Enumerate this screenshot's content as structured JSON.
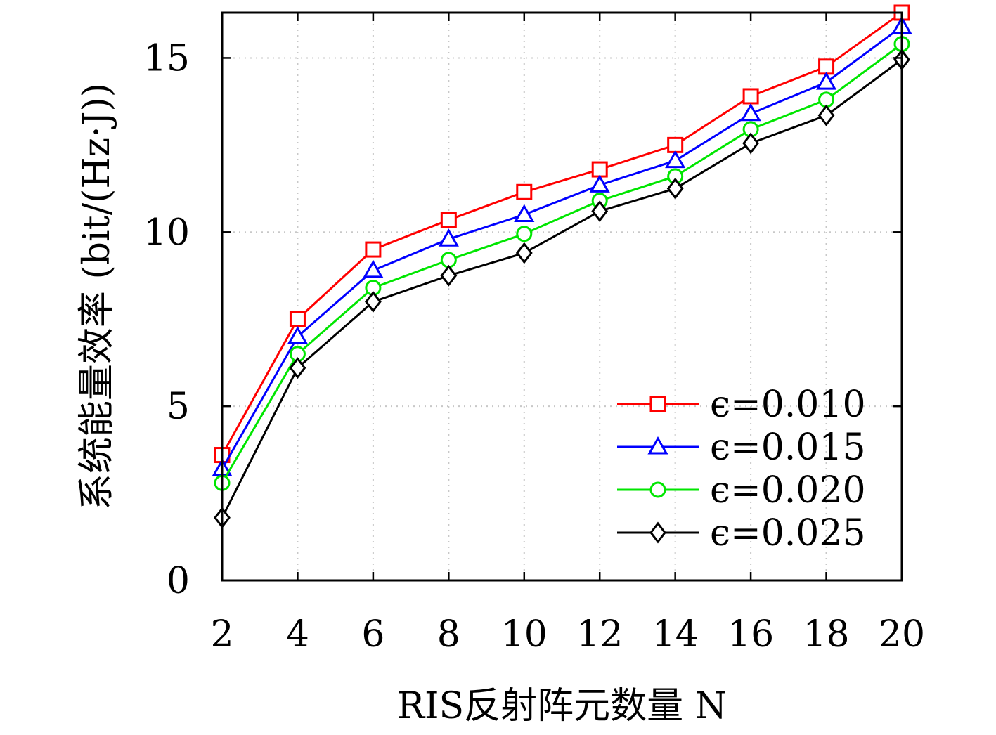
{
  "chart_data": {
    "type": "line",
    "title": "",
    "xlabel": "RIS反射阵元数量 N",
    "ylabel": "系统能量效率 (bit/(Hz·J))",
    "x": [
      2,
      4,
      6,
      8,
      10,
      12,
      14,
      16,
      18,
      20
    ],
    "xlim": [
      2,
      20
    ],
    "ylim": [
      0,
      16.3
    ],
    "xticks": [
      "2",
      "4",
      "6",
      "8",
      "10",
      "12",
      "14",
      "16",
      "18",
      "20"
    ],
    "yticks": [
      "0",
      "5",
      "10",
      "15"
    ],
    "grid": true,
    "legend_position": "bottom-right",
    "series": [
      {
        "name": "ϵ=0.010",
        "color": "#ff0000",
        "marker": "square",
        "values": [
          3.6,
          7.5,
          9.5,
          10.35,
          11.15,
          11.8,
          12.5,
          13.9,
          14.75,
          16.3
        ]
      },
      {
        "name": "ϵ=0.015",
        "color": "#0000ff",
        "marker": "triangle",
        "values": [
          3.2,
          7.0,
          8.9,
          9.8,
          10.5,
          11.35,
          12.05,
          13.4,
          14.3,
          15.9
        ]
      },
      {
        "name": "ϵ=0.020",
        "color": "#00e600",
        "marker": "circle",
        "values": [
          2.8,
          6.5,
          8.4,
          9.2,
          9.95,
          10.9,
          11.6,
          12.95,
          13.8,
          15.4
        ]
      },
      {
        "name": "ϵ=0.025",
        "color": "#000000",
        "marker": "diamond",
        "values": [
          1.8,
          6.1,
          8.0,
          8.75,
          9.4,
          10.6,
          11.25,
          12.55,
          13.35,
          14.95
        ]
      }
    ]
  }
}
